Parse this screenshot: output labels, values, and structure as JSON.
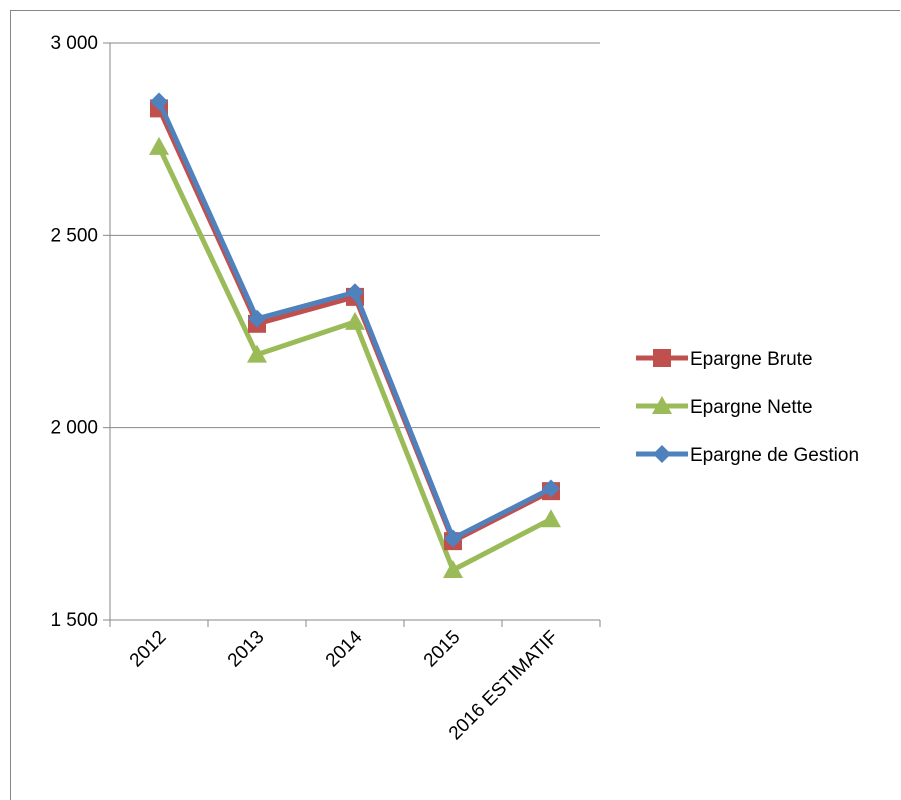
{
  "chart_data": {
    "type": "line",
    "title": "",
    "xlabel": "",
    "ylabel": "",
    "categories": [
      "2012",
      "2013",
      "2014",
      "2015",
      "2016 ESTIMATIF"
    ],
    "ylim": [
      1500,
      3000
    ],
    "yticks": [
      1500,
      2000,
      2500,
      3000
    ],
    "ytick_labels": [
      "1 500",
      "2 000",
      "2 500",
      "3 000"
    ],
    "grid": true,
    "legend_position": "right",
    "series": [
      {
        "name": "Epargne Brute",
        "values": [
          2830,
          2270,
          2340,
          1705,
          1835
        ],
        "color": "#c0504d",
        "marker": "square"
      },
      {
        "name": "Epargne Nette",
        "values": [
          2730,
          2190,
          2275,
          1630,
          1762
        ],
        "color": "#9bbb59",
        "marker": "triangle"
      },
      {
        "name": "Epargne de Gestion",
        "values": [
          2848,
          2283,
          2352,
          1712,
          1842
        ],
        "color": "#4f81bd",
        "marker": "diamond"
      }
    ]
  }
}
